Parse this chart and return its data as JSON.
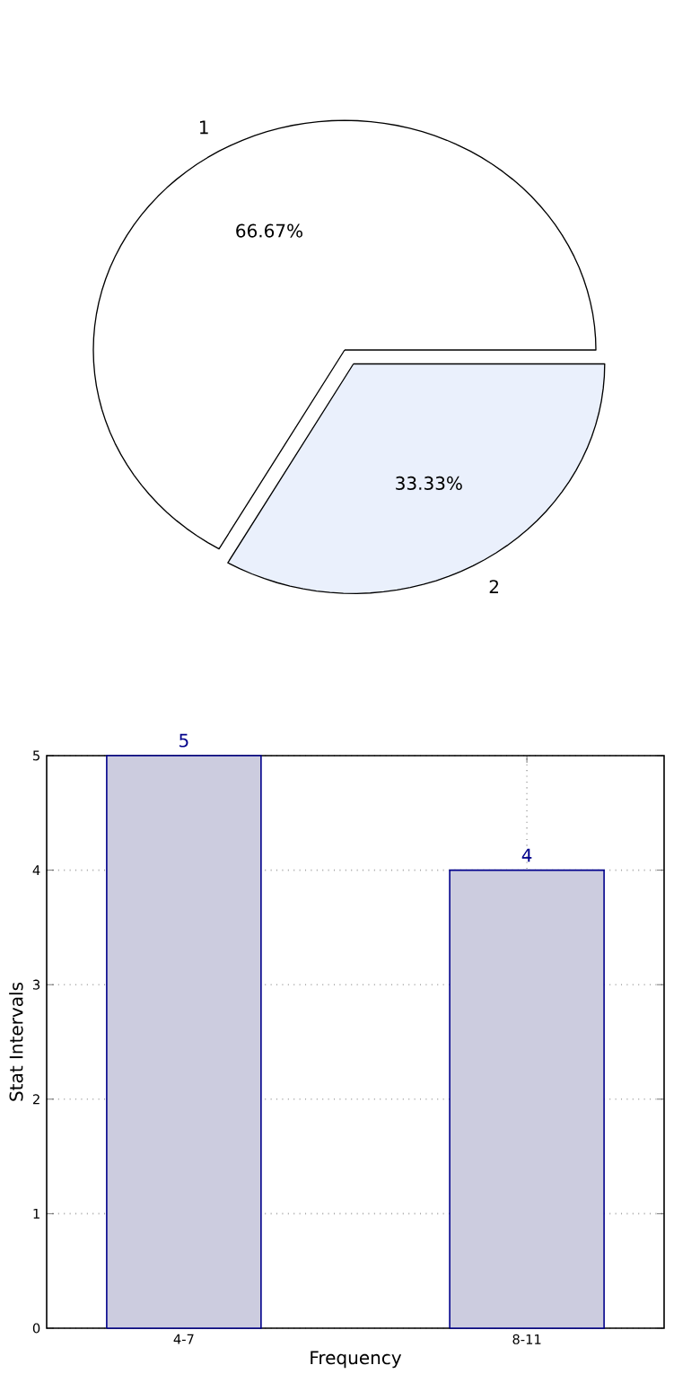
{
  "chart_data": [
    {
      "type": "pie",
      "categories": [
        "1",
        "2"
      ],
      "values": [
        66.67,
        33.33
      ],
      "colors": [
        "#ffffff",
        "#eaf0fc"
      ],
      "value_labels": [
        "66.67%",
        "33.33%"
      ]
    },
    {
      "type": "bar",
      "categories": [
        "4-7",
        "8-11"
      ],
      "values": [
        5,
        4
      ],
      "color": "#ccccdf",
      "xlabel": "Frequency",
      "ylabel": "Stat Intervals",
      "ylim": [
        0,
        5
      ],
      "yticks": [
        0,
        1,
        2,
        3,
        4,
        5
      ],
      "grid": true,
      "data_labels": true
    }
  ]
}
